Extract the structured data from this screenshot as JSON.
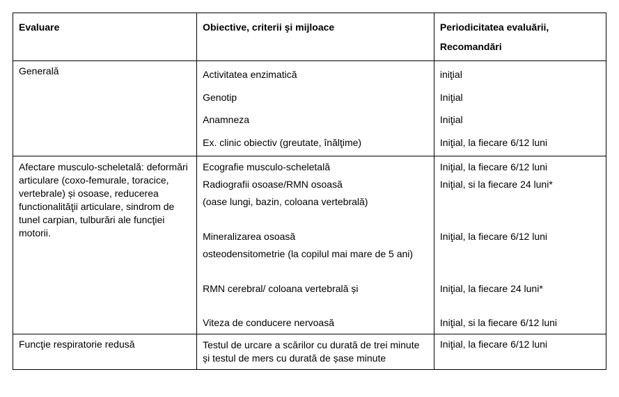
{
  "table": {
    "header": {
      "c0": "Evaluare",
      "c1": "Obiective, criterii şi mijloace",
      "c2_l1": "Periodicitatea evaluării,",
      "c2_l2": "Recomandări"
    },
    "rows": [
      {
        "c0": "Generală",
        "c1": [
          "Activitatea enzimatică",
          "Genotip",
          "Anamneza",
          "Ex. clinic obiectiv (greutate, înălţime)"
        ],
        "c2": [
          "iniţial",
          "Iniţial",
          "Iniţial",
          "Iniţial, la fiecare 6/12 luni"
        ]
      },
      {
        "c0": "Afectare musculo-scheletală: deformări articulare (coxo-femurale, toracice, vertebrale) și osoase, reducerea functionalităţii articulare, sindrom de tunel carpian, tulburări ale funcţiei motorii.",
        "c1": [
          "Ecografie musculo-scheletală",
          "Radiografii osoase/RMN osoasă",
          "(oase lungi, bazin, coloana vertebrală)",
          "",
          "Mineralizarea osoasă",
          "osteodensitometrie (la copilul mai mare de 5 ani)",
          "",
          "RMN cerebral/ coloana vertebrală și",
          "",
          "Viteza de conducere nervoasă"
        ],
        "c2": [
          "Iniţial, la fiecare 6/12 luni",
          "Iniţial, si la fiecare 24 luni*",
          "",
          "",
          "Iniţial, la  fiecare 6/12 luni",
          "",
          "",
          "Iniţial, la fiecare 24 luni*",
          "",
          "Iniţial, si la fiecare 6/12 luni"
        ]
      },
      {
        "c0": "Funcţie respiratorie redusă",
        "c1": [
          "Testul de urcare a scărilor cu durată de trei minute și  testul de mers cu durată de șase minute"
        ],
        "c2": [
          "Iniţial, la fiecare 6/12 luni"
        ]
      }
    ]
  },
  "style": {
    "font_family": "Arial",
    "base_fontsize_pt": 11,
    "text_color": "#000000",
    "border_color": "#000000",
    "background_color": "#ffffff"
  }
}
